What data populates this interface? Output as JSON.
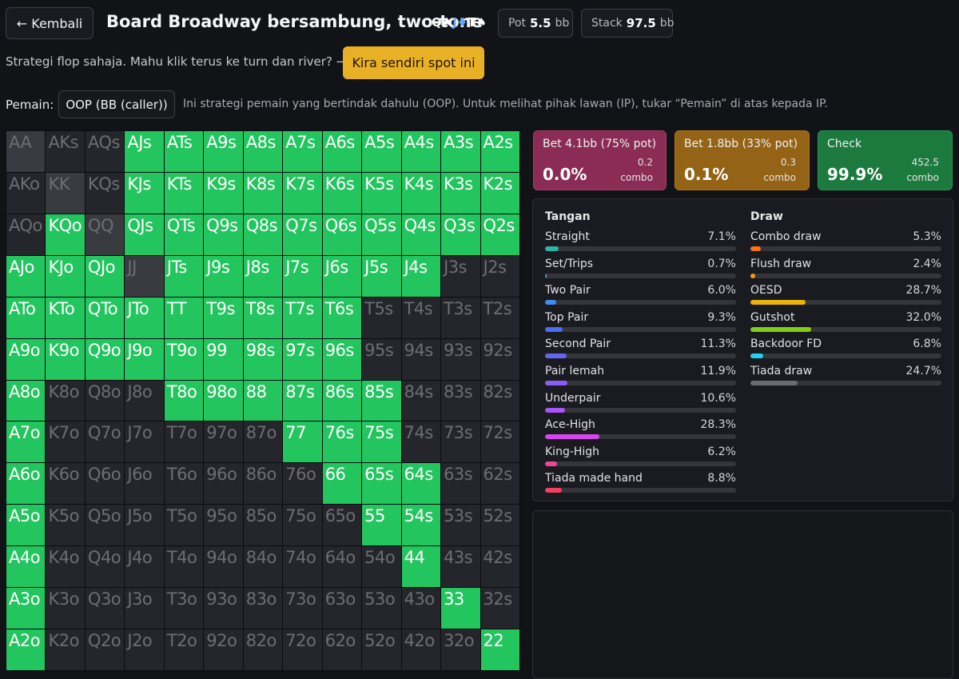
{
  "header": {
    "back_label": "← Kembali",
    "title": "Board Broadway bersambung, two-tone",
    "board_cards": [
      {
        "text": "Q♠",
        "color": "#ffffff"
      },
      {
        "text": "J♦",
        "color": "#5aa9ff"
      },
      {
        "text": "T♠",
        "color": "#ffffff"
      }
    ],
    "pot_label": "Pot",
    "pot_value": "5.5",
    "pot_unit": "bb",
    "stack_label": "Stack",
    "stack_value": "97.5",
    "stack_unit": "bb"
  },
  "intro": {
    "text": "Strategi flop sahaja. Mahu klik terus ke turn dan river? →",
    "cta_label": "Kira sendiri spot ini"
  },
  "player": {
    "label": "Pemain:",
    "selected": "OOP (BB (caller))",
    "hint": "Ini strategi pemain yang bertindak dahulu (OOP). Untuk melihat pihak lawan (IP), tukar “Pemain” di atas kepada IP."
  },
  "range": {
    "ranks": [
      "A",
      "K",
      "Q",
      "J",
      "T",
      "9",
      "8",
      "7",
      "6",
      "5",
      "4",
      "3",
      "2"
    ],
    "colors": {
      "on": "#22c55e",
      "off": "#25262b",
      "pp_off": "#3a3b40"
    },
    "grid": [
      [
        "AA",
        "AKs",
        "AQs",
        "AJs",
        "ATs",
        "A9s",
        "A8s",
        "A7s",
        "A6s",
        "A5s",
        "A4s",
        "A3s",
        "A2s"
      ],
      [
        "AKo",
        "KK",
        "KQs",
        "KJs",
        "KTs",
        "K9s",
        "K8s",
        "K7s",
        "K6s",
        "K5s",
        "K4s",
        "K3s",
        "K2s"
      ],
      [
        "AQo",
        "KQo",
        "QQ",
        "QJs",
        "QTs",
        "Q9s",
        "Q8s",
        "Q7s",
        "Q6s",
        "Q5s",
        "Q4s",
        "Q3s",
        "Q2s"
      ],
      [
        "AJo",
        "KJo",
        "QJo",
        "JJ",
        "JTs",
        "J9s",
        "J8s",
        "J7s",
        "J6s",
        "J5s",
        "J4s",
        "J3s",
        "J2s"
      ],
      [
        "ATo",
        "KTo",
        "QTo",
        "JTo",
        "TT",
        "T9s",
        "T8s",
        "T7s",
        "T6s",
        "T5s",
        "T4s",
        "T3s",
        "T2s"
      ],
      [
        "A9o",
        "K9o",
        "Q9o",
        "J9o",
        "T9o",
        "99",
        "98s",
        "97s",
        "96s",
        "95s",
        "94s",
        "93s",
        "92s"
      ],
      [
        "A8o",
        "K8o",
        "Q8o",
        "J8o",
        "T8o",
        "98o",
        "88",
        "87s",
        "86s",
        "85s",
        "84s",
        "83s",
        "82s"
      ],
      [
        "A7o",
        "K7o",
        "Q7o",
        "J7o",
        "T7o",
        "97o",
        "87o",
        "77",
        "76s",
        "75s",
        "74s",
        "73s",
        "72s"
      ],
      [
        "A6o",
        "K6o",
        "Q6o",
        "J6o",
        "T6o",
        "96o",
        "86o",
        "76o",
        "66",
        "65s",
        "64s",
        "63s",
        "62s"
      ],
      [
        "A5o",
        "K5o",
        "Q5o",
        "J5o",
        "T5o",
        "95o",
        "85o",
        "75o",
        "65o",
        "55",
        "54s",
        "53s",
        "52s"
      ],
      [
        "A4o",
        "K4o",
        "Q4o",
        "J4o",
        "T4o",
        "94o",
        "84o",
        "74o",
        "64o",
        "54o",
        "44",
        "43s",
        "42s"
      ],
      [
        "A3o",
        "K3o",
        "Q3o",
        "J3o",
        "T3o",
        "93o",
        "83o",
        "73o",
        "63o",
        "53o",
        "43o",
        "33",
        "32s"
      ],
      [
        "A2o",
        "K2o",
        "Q2o",
        "J2o",
        "T2o",
        "92o",
        "82o",
        "72o",
        "62o",
        "52o",
        "42o",
        "32o",
        "22"
      ]
    ],
    "in_range": [
      "AJs",
      "ATs",
      "A9s",
      "A8s",
      "A7s",
      "A6s",
      "A5s",
      "A4s",
      "A3s",
      "A2s",
      "KJs",
      "KTs",
      "K9s",
      "K8s",
      "K7s",
      "K6s",
      "K5s",
      "K4s",
      "K3s",
      "K2s",
      "KQo",
      "QJs",
      "QTs",
      "Q9s",
      "Q8s",
      "Q7s",
      "Q6s",
      "Q5s",
      "Q4s",
      "Q3s",
      "Q2s",
      "AJo",
      "KJo",
      "QJo",
      "JTs",
      "J9s",
      "J8s",
      "J7s",
      "J6s",
      "J5s",
      "J4s",
      "ATo",
      "KTo",
      "QTo",
      "JTo",
      "TT",
      "T9s",
      "T8s",
      "T7s",
      "T6s",
      "A9o",
      "K9o",
      "Q9o",
      "J9o",
      "T9o",
      "99",
      "98s",
      "97s",
      "96s",
      "A8o",
      "T8o",
      "98o",
      "88",
      "87s",
      "86s",
      "85s",
      "A7o",
      "77",
      "76s",
      "75s",
      "A6o",
      "66",
      "65s",
      "64s",
      "A5o",
      "55",
      "54s",
      "A4o",
      "44",
      "A3o",
      "33",
      "A2o",
      "22"
    ]
  },
  "actions": [
    {
      "label": "Bet 4.1bb (75% pot)",
      "pct": "0.0%",
      "combo_value": "0.2",
      "combo_label": "combo",
      "color": "#8a2c55"
    },
    {
      "label": "Bet 1.8bb (33% pot)",
      "pct": "0.1%",
      "combo_value": "0.3",
      "combo_label": "combo",
      "color": "#946316"
    },
    {
      "label": "Check",
      "pct": "99.9%",
      "combo_value": "452.5",
      "combo_label": "combo",
      "color": "#1d7a3f"
    }
  ],
  "stats": {
    "hands_title": "Tangan",
    "hands": [
      {
        "name": "Straight",
        "value": "7.1%",
        "pct": 7.1,
        "color": "#2bb5a9"
      },
      {
        "name": "Set/Trips",
        "value": "0.7%",
        "pct": 0.7,
        "color": "#3ba7d8"
      },
      {
        "name": "Two Pair",
        "value": "6.0%",
        "pct": 6.0,
        "color": "#3b8ff0"
      },
      {
        "name": "Top Pair",
        "value": "9.3%",
        "pct": 9.3,
        "color": "#4a6ff0"
      },
      {
        "name": "Second Pair",
        "value": "11.3%",
        "pct": 11.3,
        "color": "#6366f1"
      },
      {
        "name": "Pair lemah",
        "value": "11.9%",
        "pct": 11.9,
        "color": "#8b5cf6"
      },
      {
        "name": "Underpair",
        "value": "10.6%",
        "pct": 10.6,
        "color": "#a855f7"
      },
      {
        "name": "Ace-High",
        "value": "28.3%",
        "pct": 28.3,
        "color": "#d946ef"
      },
      {
        "name": "King-High",
        "value": "6.2%",
        "pct": 6.2,
        "color": "#ec4899"
      },
      {
        "name": "Tiada made hand",
        "value": "8.8%",
        "pct": 8.8,
        "color": "#f43f5e"
      }
    ],
    "draws_title": "Draw",
    "draws": [
      {
        "name": "Combo draw",
        "value": "5.3%",
        "pct": 5.3,
        "color": "#f97316"
      },
      {
        "name": "Flush draw",
        "value": "2.4%",
        "pct": 2.4,
        "color": "#f59e0b"
      },
      {
        "name": "OESD",
        "value": "28.7%",
        "pct": 28.7,
        "color": "#eab308"
      },
      {
        "name": "Gutshot",
        "value": "32.0%",
        "pct": 32.0,
        "color": "#84cc16"
      },
      {
        "name": "Backdoor FD",
        "value": "6.8%",
        "pct": 6.8,
        "color": "#22d3ee"
      },
      {
        "name": "Tiada draw",
        "value": "24.7%",
        "pct": 24.7,
        "color": "#6b6c72"
      }
    ]
  }
}
